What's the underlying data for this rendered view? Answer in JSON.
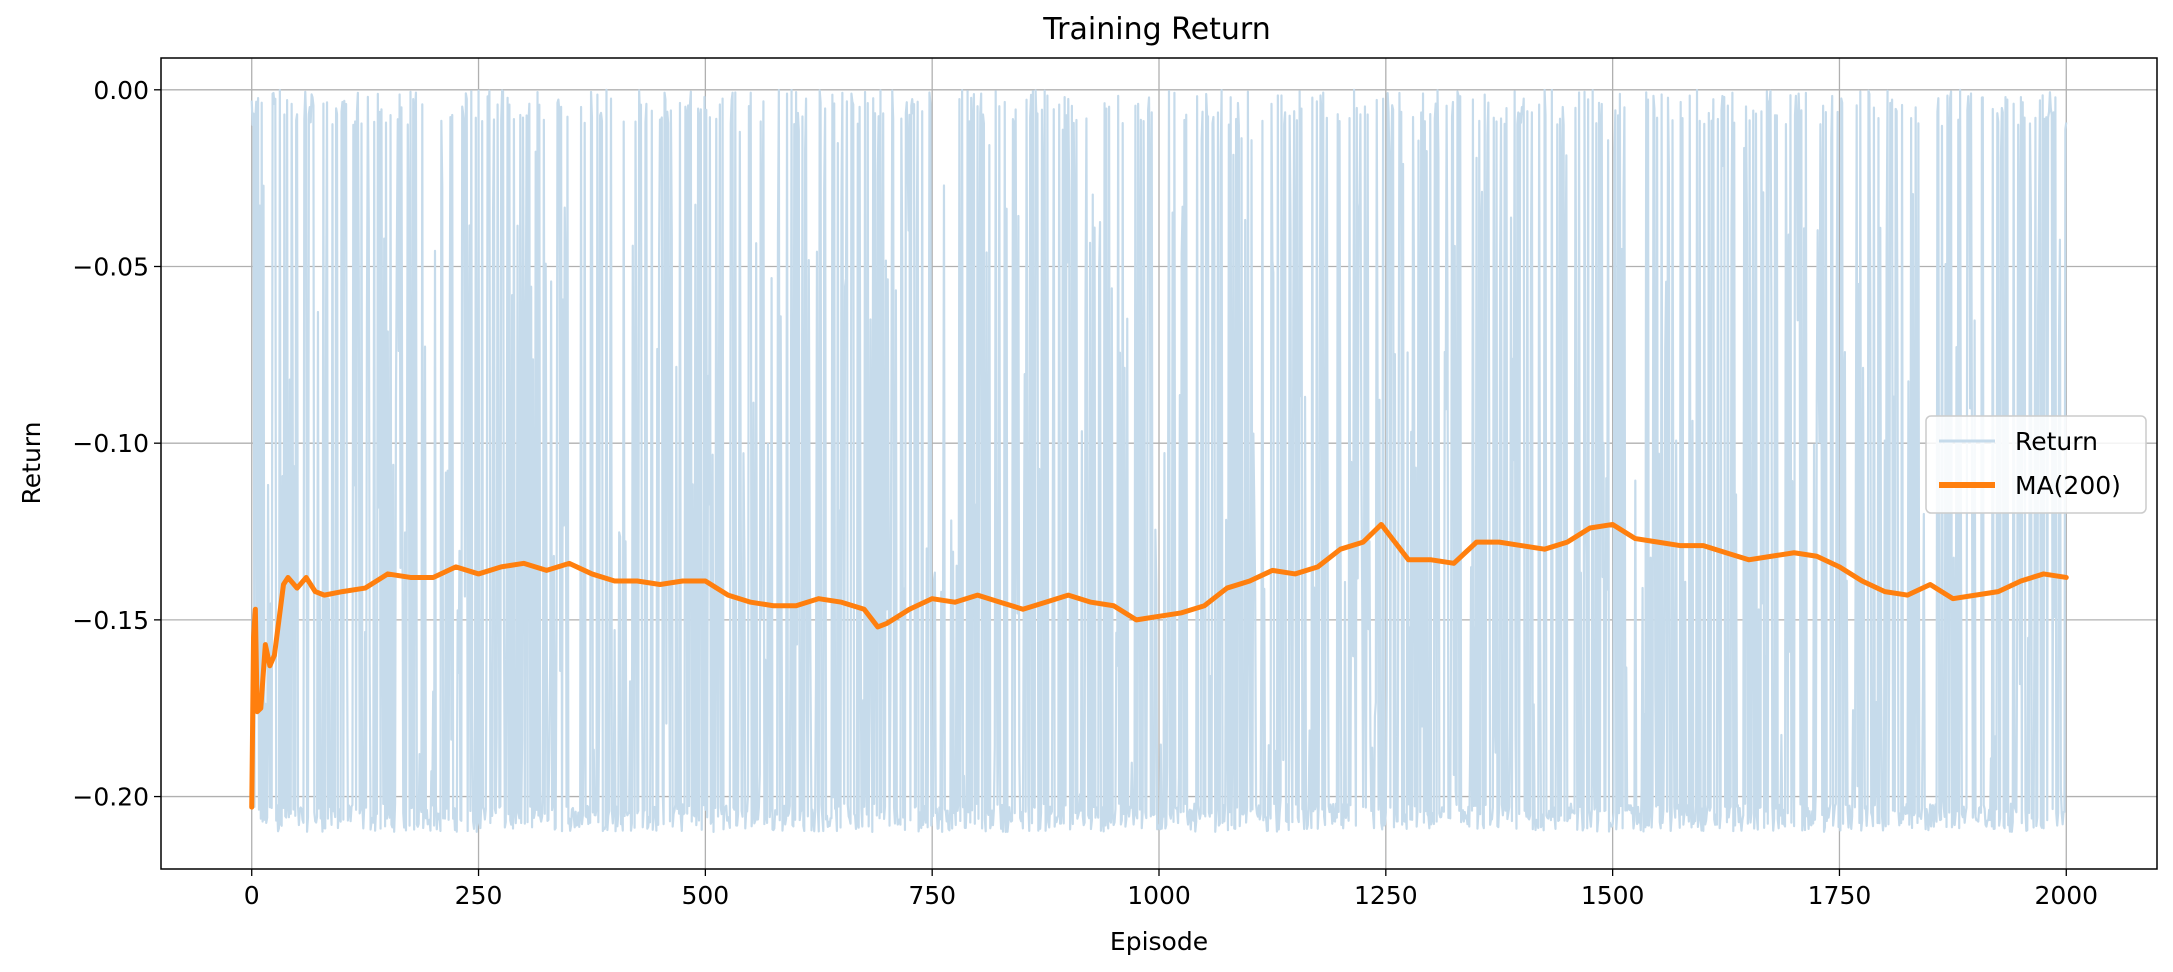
{
  "chart_data": {
    "type": "line",
    "title": "Training Return",
    "xlabel": "Episode",
    "ylabel": "Return",
    "xlim": [
      -100,
      2100
    ],
    "ylim": [
      -0.2205,
      0.009
    ],
    "xticks": [
      0,
      250,
      500,
      750,
      1000,
      1250,
      1500,
      1750,
      2000
    ],
    "xtick_labels": [
      "0",
      "250",
      "500",
      "750",
      "1000",
      "1250",
      "1500",
      "1750",
      "2000"
    ],
    "yticks": [
      0.0,
      -0.05,
      -0.1,
      -0.15,
      -0.2
    ],
    "ytick_labels": [
      "0.00",
      "−0.05",
      "−0.10",
      "−0.15",
      "−0.20"
    ],
    "grid": true,
    "legend_position": "center-right",
    "series": [
      {
        "name": "Return",
        "color": "#c6dbeb",
        "style": "noisy per-episode returns oscillating between about -0.21 and 0.00",
        "x_range": [
          0,
          2000
        ],
        "min": -0.21,
        "max": 0.0
      },
      {
        "name": "MA(200)",
        "color": "#ff7f0e",
        "x": [
          0,
          2,
          4,
          6,
          10,
          15,
          20,
          25,
          30,
          35,
          40,
          50,
          60,
          70,
          80,
          100,
          125,
          150,
          175,
          200,
          225,
          250,
          275,
          300,
          325,
          350,
          375,
          400,
          425,
          450,
          475,
          500,
          525,
          550,
          575,
          600,
          625,
          650,
          675,
          690,
          700,
          725,
          750,
          775,
          800,
          825,
          850,
          875,
          900,
          925,
          950,
          975,
          1000,
          1025,
          1050,
          1075,
          1100,
          1125,
          1150,
          1175,
          1200,
          1225,
          1245,
          1260,
          1275,
          1300,
          1325,
          1350,
          1375,
          1400,
          1425,
          1450,
          1475,
          1500,
          1525,
          1550,
          1575,
          1600,
          1625,
          1650,
          1675,
          1700,
          1725,
          1750,
          1775,
          1800,
          1825,
          1850,
          1875,
          1900,
          1925,
          1950,
          1975,
          2000
        ],
        "values": [
          -0.203,
          -0.155,
          -0.147,
          -0.176,
          -0.175,
          -0.157,
          -0.163,
          -0.16,
          -0.15,
          -0.14,
          -0.138,
          -0.141,
          -0.138,
          -0.142,
          -0.143,
          -0.142,
          -0.141,
          -0.137,
          -0.138,
          -0.138,
          -0.135,
          -0.137,
          -0.135,
          -0.134,
          -0.136,
          -0.134,
          -0.137,
          -0.139,
          -0.139,
          -0.14,
          -0.139,
          -0.139,
          -0.143,
          -0.145,
          -0.146,
          -0.146,
          -0.144,
          -0.145,
          -0.147,
          -0.152,
          -0.151,
          -0.147,
          -0.144,
          -0.145,
          -0.143,
          -0.145,
          -0.147,
          -0.145,
          -0.143,
          -0.145,
          -0.146,
          -0.15,
          -0.149,
          -0.148,
          -0.146,
          -0.141,
          -0.139,
          -0.136,
          -0.137,
          -0.135,
          -0.13,
          -0.128,
          -0.123,
          -0.128,
          -0.133,
          -0.133,
          -0.134,
          -0.128,
          -0.128,
          -0.129,
          -0.13,
          -0.128,
          -0.124,
          -0.123,
          -0.127,
          -0.128,
          -0.129,
          -0.129,
          -0.131,
          -0.133,
          -0.132,
          -0.131,
          -0.132,
          -0.135,
          -0.139,
          -0.142,
          -0.143,
          -0.14,
          -0.144,
          -0.143,
          -0.142,
          -0.139,
          -0.137,
          -0.138
        ]
      }
    ]
  }
}
